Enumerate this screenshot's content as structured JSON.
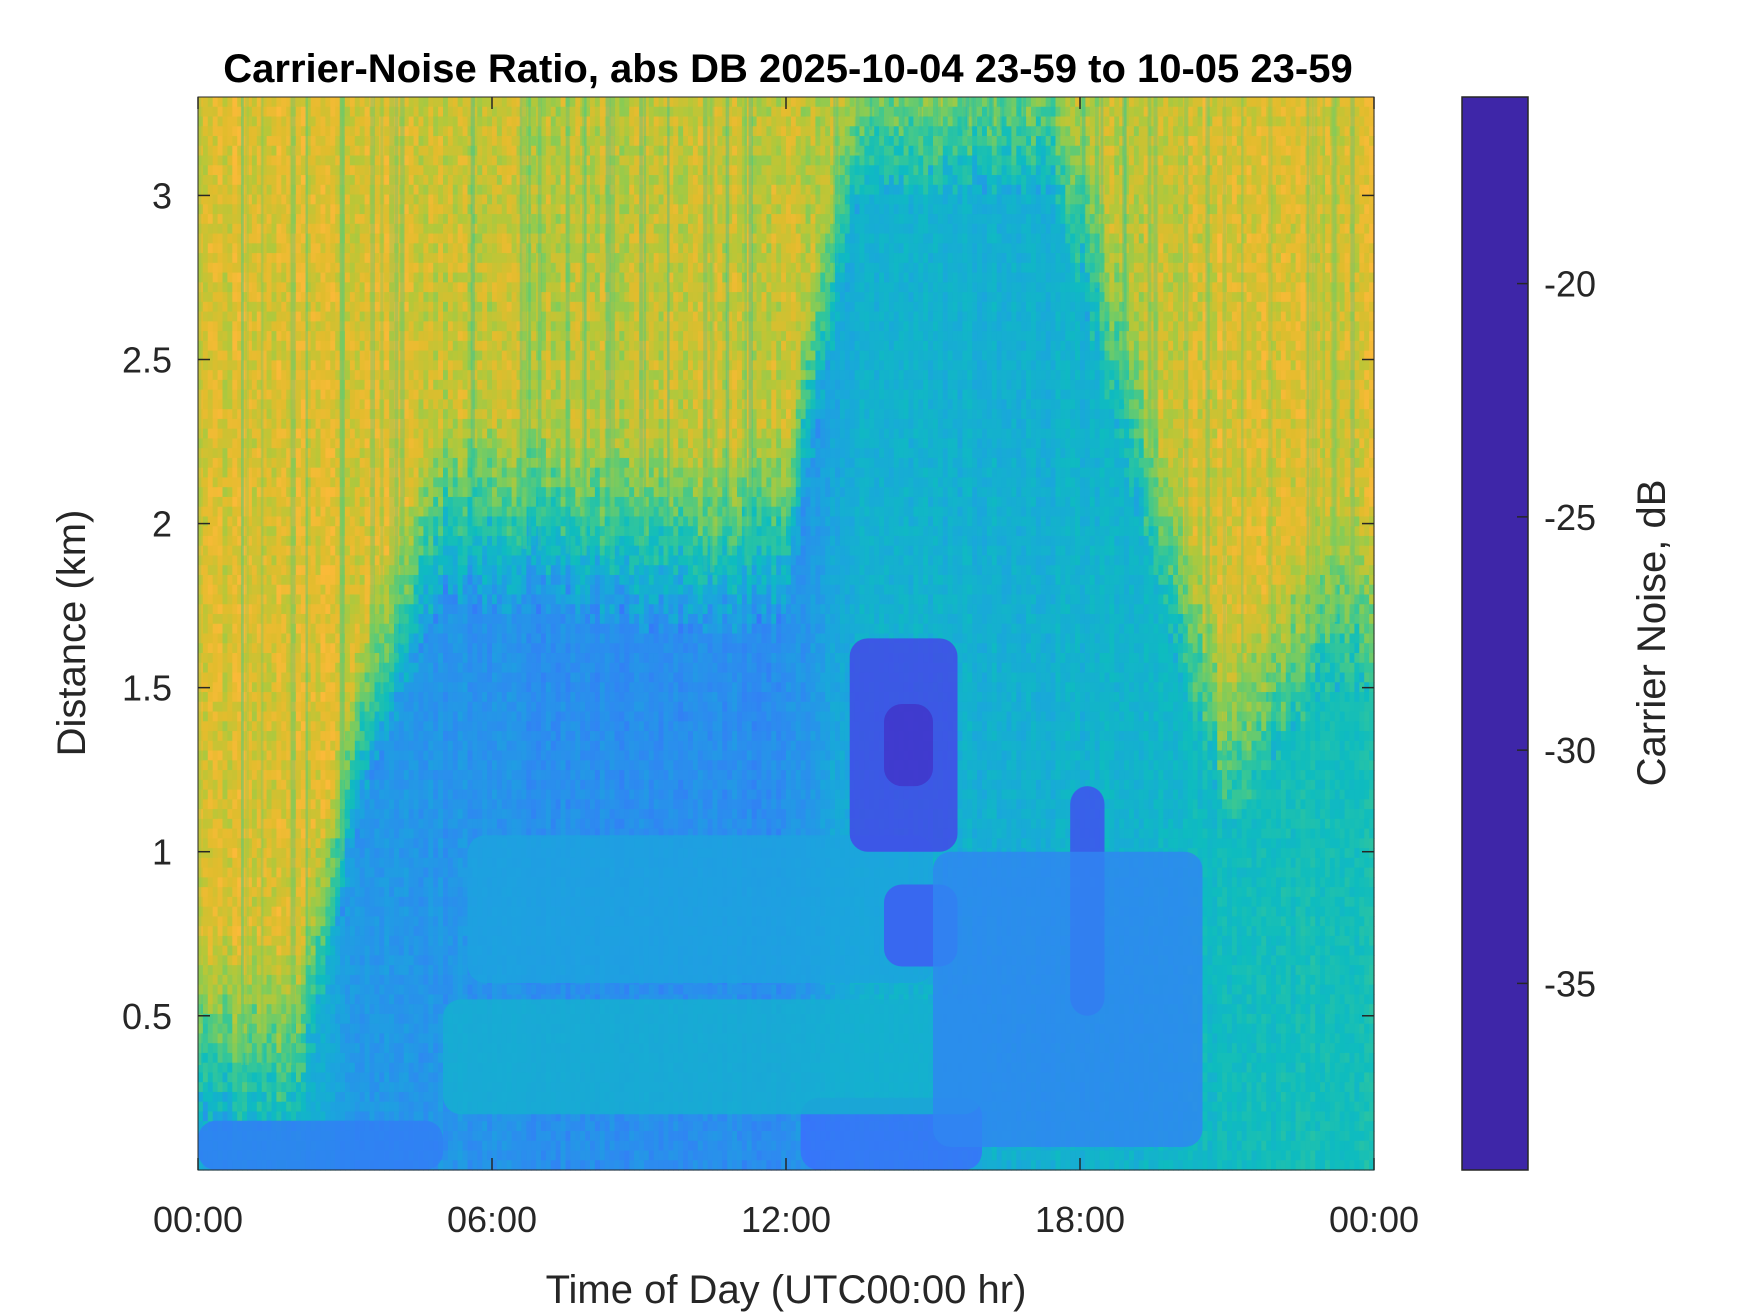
{
  "chart_data": {
    "type": "heatmap",
    "title": "Carrier-Noise Ratio, abs DB 2025-10-04 23-59 to 10-05 23-59",
    "xlabel": "Time of Day (UTC00:00 hr)",
    "ylabel": "Distance (km)",
    "x_range_hours": [
      0,
      24
    ],
    "ylim": [
      0.03,
      3.3
    ],
    "x_ticks": [
      {
        "value": 0,
        "label": "00:00"
      },
      {
        "value": 6,
        "label": "06:00"
      },
      {
        "value": 12,
        "label": "12:00"
      },
      {
        "value": 18,
        "label": "18:00"
      },
      {
        "value": 24,
        "label": "00:00"
      }
    ],
    "y_ticks": [
      {
        "value": 0.5,
        "label": "0.5"
      },
      {
        "value": 1,
        "label": "1"
      },
      {
        "value": 1.5,
        "label": "1.5"
      },
      {
        "value": 2,
        "label": "2"
      },
      {
        "value": 2.5,
        "label": "2.5"
      },
      {
        "value": 3,
        "label": "3"
      }
    ],
    "colorbar": {
      "label": "Carrier Noise, dB",
      "range": [
        -39,
        -16
      ],
      "ticks": [
        {
          "value": -20,
          "label": "-20"
        },
        {
          "value": -25,
          "label": "-25"
        },
        {
          "value": -30,
          "label": "-30"
        },
        {
          "value": -35,
          "label": "-35"
        }
      ],
      "colormap": "parula",
      "colormap_stops": [
        "#3e26a8",
        "#4443e8",
        "#3b6cfe",
        "#2d8af0",
        "#1aa6dc",
        "#0ebcbf",
        "#38c795",
        "#81cc59",
        "#b7c738",
        "#e2bc2d",
        "#fbba39",
        "#fcd928",
        "#f9fb0e"
      ]
    },
    "grid": false,
    "field": {
      "x_samples_hours": [
        0,
        2,
        3.5,
        4.5,
        6,
        8,
        10,
        12,
        13,
        14,
        15,
        16,
        17,
        18,
        19,
        20,
        21,
        22,
        23,
        24
      ],
      "background_by_x": [
        {
          "x": 0,
          "low_edge_km": 0.15,
          "low_db": -24,
          "top_db": -33
        },
        {
          "x": 2,
          "low_edge_km": 0.15,
          "low_db": -25,
          "top_db": -33
        },
        {
          "x": 3.5,
          "low_edge_km": 1.2,
          "low_db": -22.5,
          "top_db": -33
        },
        {
          "x": 5,
          "low_edge_km": 1.75,
          "low_db": -22.5,
          "top_db": -32
        },
        {
          "x": 8,
          "low_edge_km": 1.7,
          "low_db": -22,
          "top_db": -31.5
        },
        {
          "x": 10.5,
          "low_edge_km": 1.65,
          "low_db": -22,
          "top_db": -32
        },
        {
          "x": 12,
          "low_edge_km": 1.7,
          "low_db": -22,
          "top_db": -32
        },
        {
          "x": 13.5,
          "low_edge_km": 3.0,
          "low_db": -24.5,
          "top_db": -31
        },
        {
          "x": 17.5,
          "low_edge_km": 3.0,
          "low_db": -24.5,
          "top_db": -31
        },
        {
          "x": 19.5,
          "low_edge_km": 1.8,
          "low_db": -25,
          "top_db": -32
        },
        {
          "x": 21,
          "low_edge_km": 1.05,
          "low_db": -25.5,
          "top_db": -33
        },
        {
          "x": 23,
          "low_edge_km": 1.5,
          "low_db": -26,
          "top_db": -33
        },
        {
          "x": 24,
          "low_edge_km": 1.5,
          "low_db": -26,
          "top_db": -33
        }
      ],
      "features": [
        {
          "name": "surface layer 00-05h",
          "x": [
            0,
            5
          ],
          "y": [
            0.03,
            0.18
          ],
          "db": -21
        },
        {
          "name": "surface layer 12-16h",
          "x": [
            12.3,
            16
          ],
          "y": [
            0.03,
            0.25
          ],
          "db": -20
        },
        {
          "name": "lower mixed layer",
          "x": [
            5,
            16
          ],
          "y": [
            0.2,
            0.55
          ],
          "db": -24.5
        },
        {
          "name": "central layer",
          "x": [
            5.5,
            15
          ],
          "y": [
            0.6,
            1.05
          ],
          "db": -23.5
        },
        {
          "name": "strong echo 13-15.5h",
          "x": [
            13.3,
            15.5
          ],
          "y": [
            1.0,
            1.65
          ],
          "db": -18
        },
        {
          "name": "core max",
          "x": [
            14,
            15
          ],
          "y": [
            1.2,
            1.45
          ],
          "db": -17
        },
        {
          "name": "echo 14-15.5h low",
          "x": [
            14,
            15.5
          ],
          "y": [
            0.65,
            0.9
          ],
          "db": -19
        },
        {
          "name": "echo column 17.8-18.5h",
          "x": [
            17.8,
            18.5
          ],
          "y": [
            0.5,
            1.2
          ],
          "db": -18.5
        },
        {
          "name": "afternoon layer 15-20h",
          "x": [
            15,
            20.5
          ],
          "y": [
            0.1,
            1.0
          ],
          "db": -21.5
        }
      ]
    }
  }
}
